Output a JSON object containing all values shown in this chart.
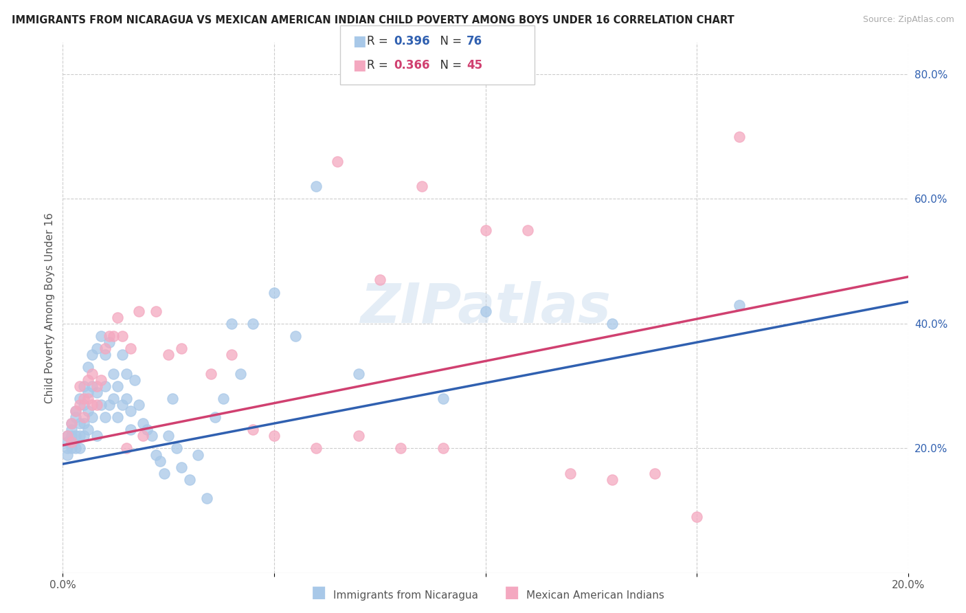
{
  "title": "IMMIGRANTS FROM NICARAGUA VS MEXICAN AMERICAN INDIAN CHILD POVERTY AMONG BOYS UNDER 16 CORRELATION CHART",
  "source": "Source: ZipAtlas.com",
  "ylabel": "Child Poverty Among Boys Under 16",
  "xlim": [
    0.0,
    0.2
  ],
  "ylim": [
    0.0,
    0.85
  ],
  "x_ticks": [
    0.0,
    0.05,
    0.1,
    0.15,
    0.2
  ],
  "x_tick_labels": [
    "0.0%",
    "",
    "",
    "",
    "20.0%"
  ],
  "y_tick_labels_right": [
    "20.0%",
    "40.0%",
    "60.0%",
    "80.0%"
  ],
  "y_ticks_right": [
    0.2,
    0.4,
    0.6,
    0.8
  ],
  "blue_color": "#a8c8e8",
  "pink_color": "#f4a8c0",
  "blue_line_color": "#3060b0",
  "pink_line_color": "#d04070",
  "blue_R": 0.396,
  "blue_N": 76,
  "pink_R": 0.366,
  "pink_N": 45,
  "watermark": "ZIPatlas",
  "legend_label_blue": "Immigrants from Nicaragua",
  "legend_label_pink": "Mexican American Indians",
  "blue_scatter_x": [
    0.001,
    0.001,
    0.001,
    0.001,
    0.002,
    0.002,
    0.002,
    0.002,
    0.002,
    0.003,
    0.003,
    0.003,
    0.003,
    0.004,
    0.004,
    0.004,
    0.004,
    0.005,
    0.005,
    0.005,
    0.005,
    0.006,
    0.006,
    0.006,
    0.006,
    0.007,
    0.007,
    0.007,
    0.008,
    0.008,
    0.008,
    0.009,
    0.009,
    0.01,
    0.01,
    0.01,
    0.011,
    0.011,
    0.012,
    0.012,
    0.013,
    0.013,
    0.014,
    0.014,
    0.015,
    0.015,
    0.016,
    0.016,
    0.017,
    0.018,
    0.019,
    0.02,
    0.021,
    0.022,
    0.023,
    0.024,
    0.025,
    0.026,
    0.027,
    0.028,
    0.03,
    0.032,
    0.034,
    0.036,
    0.038,
    0.04,
    0.042,
    0.045,
    0.05,
    0.055,
    0.06,
    0.07,
    0.09,
    0.1,
    0.13,
    0.16
  ],
  "blue_scatter_y": [
    0.2,
    0.21,
    0.22,
    0.19,
    0.23,
    0.22,
    0.21,
    0.24,
    0.2,
    0.26,
    0.25,
    0.22,
    0.2,
    0.28,
    0.24,
    0.22,
    0.2,
    0.3,
    0.27,
    0.24,
    0.22,
    0.33,
    0.29,
    0.26,
    0.23,
    0.35,
    0.3,
    0.25,
    0.36,
    0.29,
    0.22,
    0.38,
    0.27,
    0.35,
    0.3,
    0.25,
    0.37,
    0.27,
    0.32,
    0.28,
    0.3,
    0.25,
    0.35,
    0.27,
    0.32,
    0.28,
    0.26,
    0.23,
    0.31,
    0.27,
    0.24,
    0.23,
    0.22,
    0.19,
    0.18,
    0.16,
    0.22,
    0.28,
    0.2,
    0.17,
    0.15,
    0.19,
    0.12,
    0.25,
    0.28,
    0.4,
    0.32,
    0.4,
    0.45,
    0.38,
    0.62,
    0.32,
    0.28,
    0.42,
    0.4,
    0.43
  ],
  "pink_scatter_x": [
    0.001,
    0.002,
    0.002,
    0.003,
    0.004,
    0.004,
    0.005,
    0.005,
    0.006,
    0.006,
    0.007,
    0.007,
    0.008,
    0.008,
    0.009,
    0.01,
    0.011,
    0.012,
    0.013,
    0.014,
    0.015,
    0.016,
    0.018,
    0.019,
    0.022,
    0.025,
    0.028,
    0.035,
    0.04,
    0.045,
    0.05,
    0.06,
    0.065,
    0.07,
    0.075,
    0.08,
    0.085,
    0.09,
    0.1,
    0.11,
    0.12,
    0.13,
    0.14,
    0.15,
    0.16
  ],
  "pink_scatter_y": [
    0.22,
    0.24,
    0.21,
    0.26,
    0.3,
    0.27,
    0.28,
    0.25,
    0.31,
    0.28,
    0.32,
    0.27,
    0.3,
    0.27,
    0.31,
    0.36,
    0.38,
    0.38,
    0.41,
    0.38,
    0.2,
    0.36,
    0.42,
    0.22,
    0.42,
    0.35,
    0.36,
    0.32,
    0.35,
    0.23,
    0.22,
    0.2,
    0.66,
    0.22,
    0.47,
    0.2,
    0.62,
    0.2,
    0.55,
    0.55,
    0.16,
    0.15,
    0.16,
    0.09,
    0.7
  ],
  "blue_line_y0": 0.175,
  "blue_line_y1": 0.435,
  "pink_line_y0": 0.205,
  "pink_line_y1": 0.475
}
